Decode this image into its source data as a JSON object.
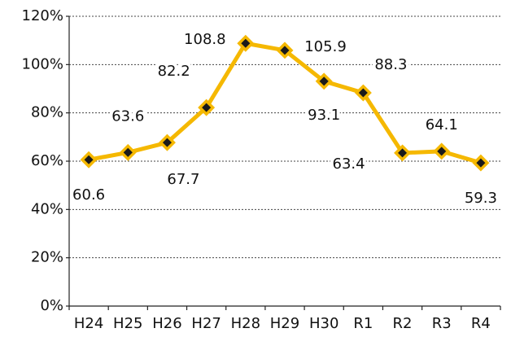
{
  "chart_data": {
    "type": "line",
    "categories": [
      "H24",
      "H25",
      "H26",
      "H27",
      "H28",
      "H29",
      "H30",
      "R1",
      "R2",
      "R3",
      "R4"
    ],
    "values": [
      60.6,
      63.6,
      67.7,
      82.2,
      108.8,
      105.9,
      93.1,
      88.3,
      63.4,
      64.1,
      59.3
    ],
    "color": "#f5b800",
    "marker_color": "#1a1a1a",
    "ylim": [
      0,
      120
    ],
    "yticks": [
      {
        "value": 0,
        "label": "0%"
      },
      {
        "value": 20,
        "label": "20%"
      },
      {
        "value": 40,
        "label": "40%"
      },
      {
        "value": 60,
        "label": "60%"
      },
      {
        "value": 80,
        "label": "80%"
      },
      {
        "value": 100,
        "label": "100%"
      },
      {
        "value": 120,
        "label": "120%"
      }
    ],
    "grid": true
  }
}
